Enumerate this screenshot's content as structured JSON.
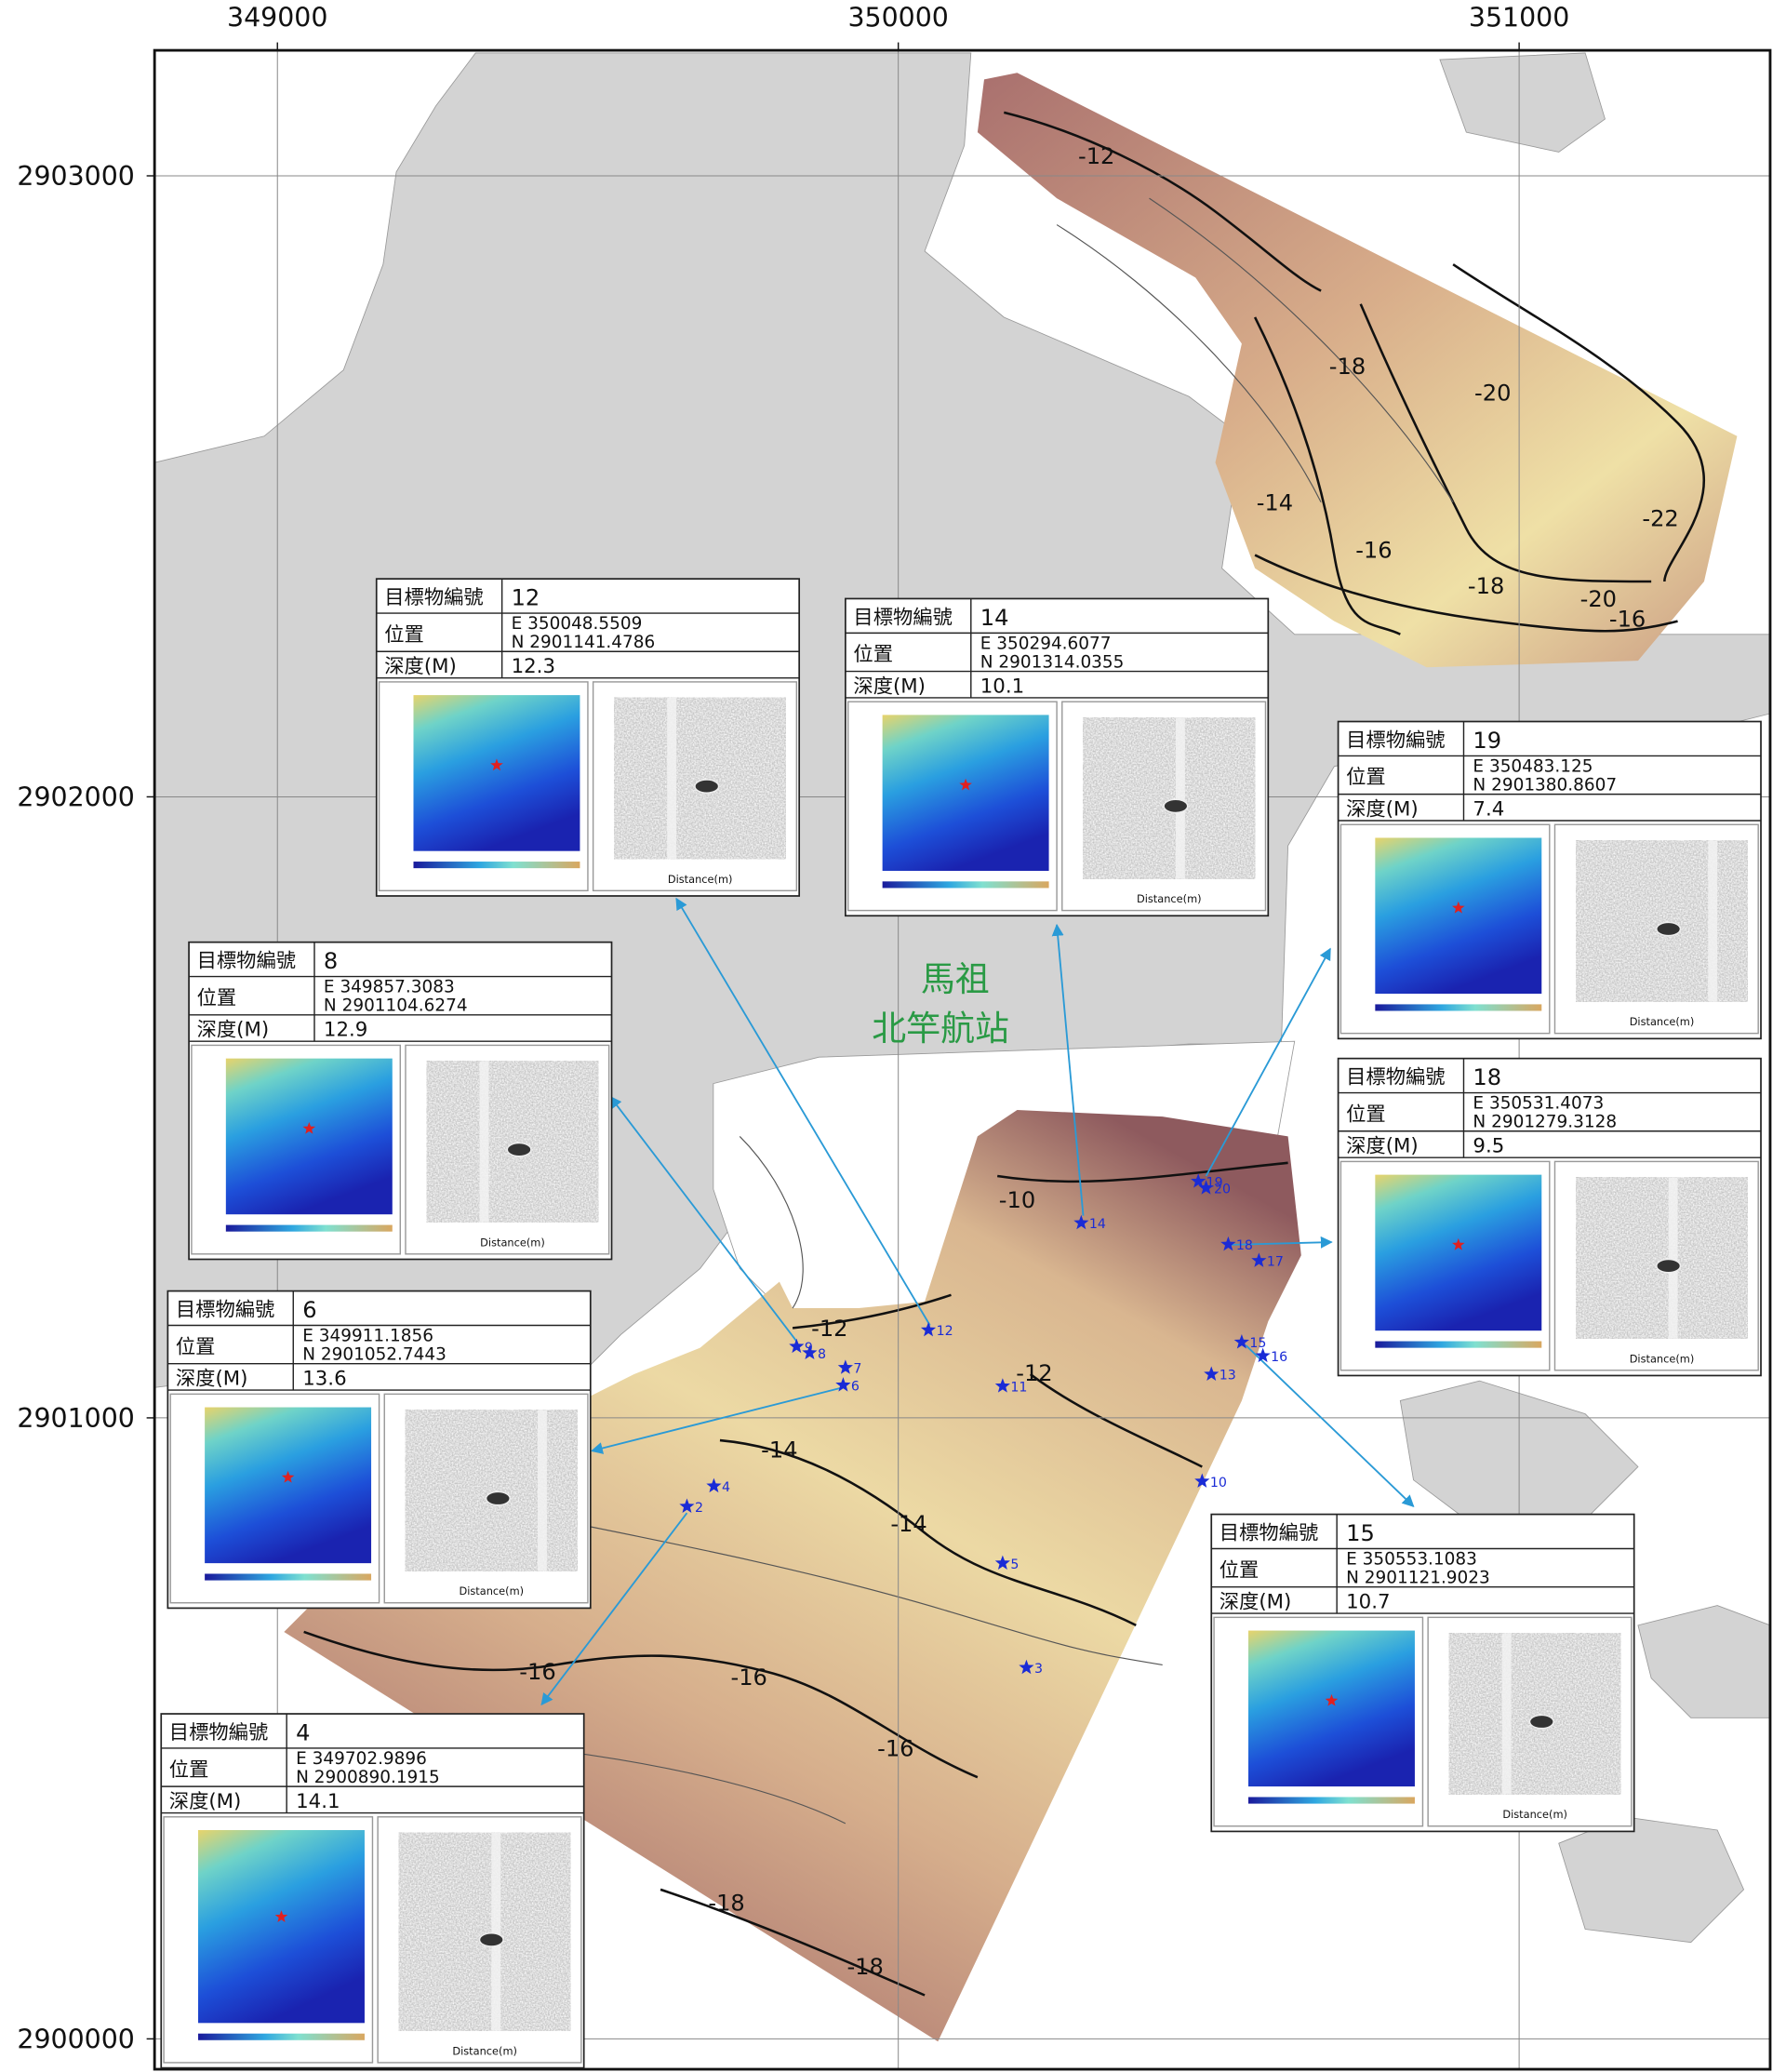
{
  "map": {
    "xlim": [
      348802.1,
      351404.3
    ],
    "ylim": [
      2899951.1,
      2903202.1
    ],
    "xticks": [
      349000,
      350000,
      351000
    ],
    "yticks": [
      2900000,
      2901000,
      2902000,
      2903000
    ],
    "grid": true,
    "place_labels": [
      "馬祖",
      "北竿航站"
    ],
    "contour_labels": [
      -12,
      -18,
      -20,
      -14,
      -16,
      -18,
      -20,
      -16,
      -22,
      -10,
      -12,
      -12,
      -14,
      -14,
      -16,
      -16,
      -16,
      -18,
      -18
    ],
    "markers": [
      {
        "label": 2,
        "e": 349659.6,
        "n": 2900857.4
      },
      {
        "label": 3,
        "e": 350206.4,
        "n": 2900597.9
      },
      {
        "label": 4,
        "e": 349702.9896,
        "n": 2900890.1915
      },
      {
        "label": 5,
        "e": 350168.1,
        "n": 2900766.0
      },
      {
        "label": 6,
        "e": 349911.1856,
        "n": 2901052.7443
      },
      {
        "label": 7,
        "e": 349914.9,
        "n": 2901080.9
      },
      {
        "label": 8,
        "e": 349857.3083,
        "n": 2901104.6274
      },
      {
        "label": 9,
        "e": 349836.2,
        "n": 2901114.9
      },
      {
        "label": 10,
        "e": 350489.4,
        "n": 2900897.9
      },
      {
        "label": 11,
        "e": 350168.1,
        "n": 2901051.1
      },
      {
        "label": 12,
        "e": 350048.5509,
        "n": 2901141.4786
      },
      {
        "label": 13,
        "e": 350504.3,
        "n": 2901070.2
      },
      {
        "label": 14,
        "e": 350294.6077,
        "n": 2901314.0355
      },
      {
        "label": 15,
        "e": 350553.1083,
        "n": 2901121.9023
      },
      {
        "label": 16,
        "e": 350587.2,
        "n": 2901100.0
      },
      {
        "label": 17,
        "e": 350580.9,
        "n": 2901253.2
      },
      {
        "label": 18,
        "e": 350531.4073,
        "n": 2901279.3128
      },
      {
        "label": 19,
        "e": 350483.125,
        "n": 2901380.8607
      },
      {
        "label": 20,
        "e": 350495.7,
        "n": 2901370.2
      }
    ],
    "card_fields": {
      "id": "目標物編號",
      "position": "位置",
      "depth": "深度(M)",
      "distance": "Distance(m)"
    },
    "cards": [
      {
        "id": 12,
        "e": "E 350048.5509",
        "n": "N 2901141.4786",
        "depth": 12.3
      },
      {
        "id": 14,
        "e": "E 350294.6077",
        "n": "N 2901314.0355",
        "depth": 10.1
      },
      {
        "id": 19,
        "e": "E 350483.125",
        "n": "N 2901380.8607",
        "depth": 7.4
      },
      {
        "id": 8,
        "e": "E 349857.3083",
        "n": "N 2901104.6274",
        "depth": 12.9
      },
      {
        "id": 18,
        "e": "E 350531.4073",
        "n": "N 2901279.3128",
        "depth": 9.5
      },
      {
        "id": 6,
        "e": "E 349911.1856",
        "n": "N 2901052.7443",
        "depth": 13.6
      },
      {
        "id": 15,
        "e": "E 350553.1083",
        "n": "N 2901121.9023",
        "depth": 10.7
      },
      {
        "id": 4,
        "e": "E 349702.9896",
        "n": "N 2900890.1915",
        "depth": 14.1
      }
    ]
  }
}
